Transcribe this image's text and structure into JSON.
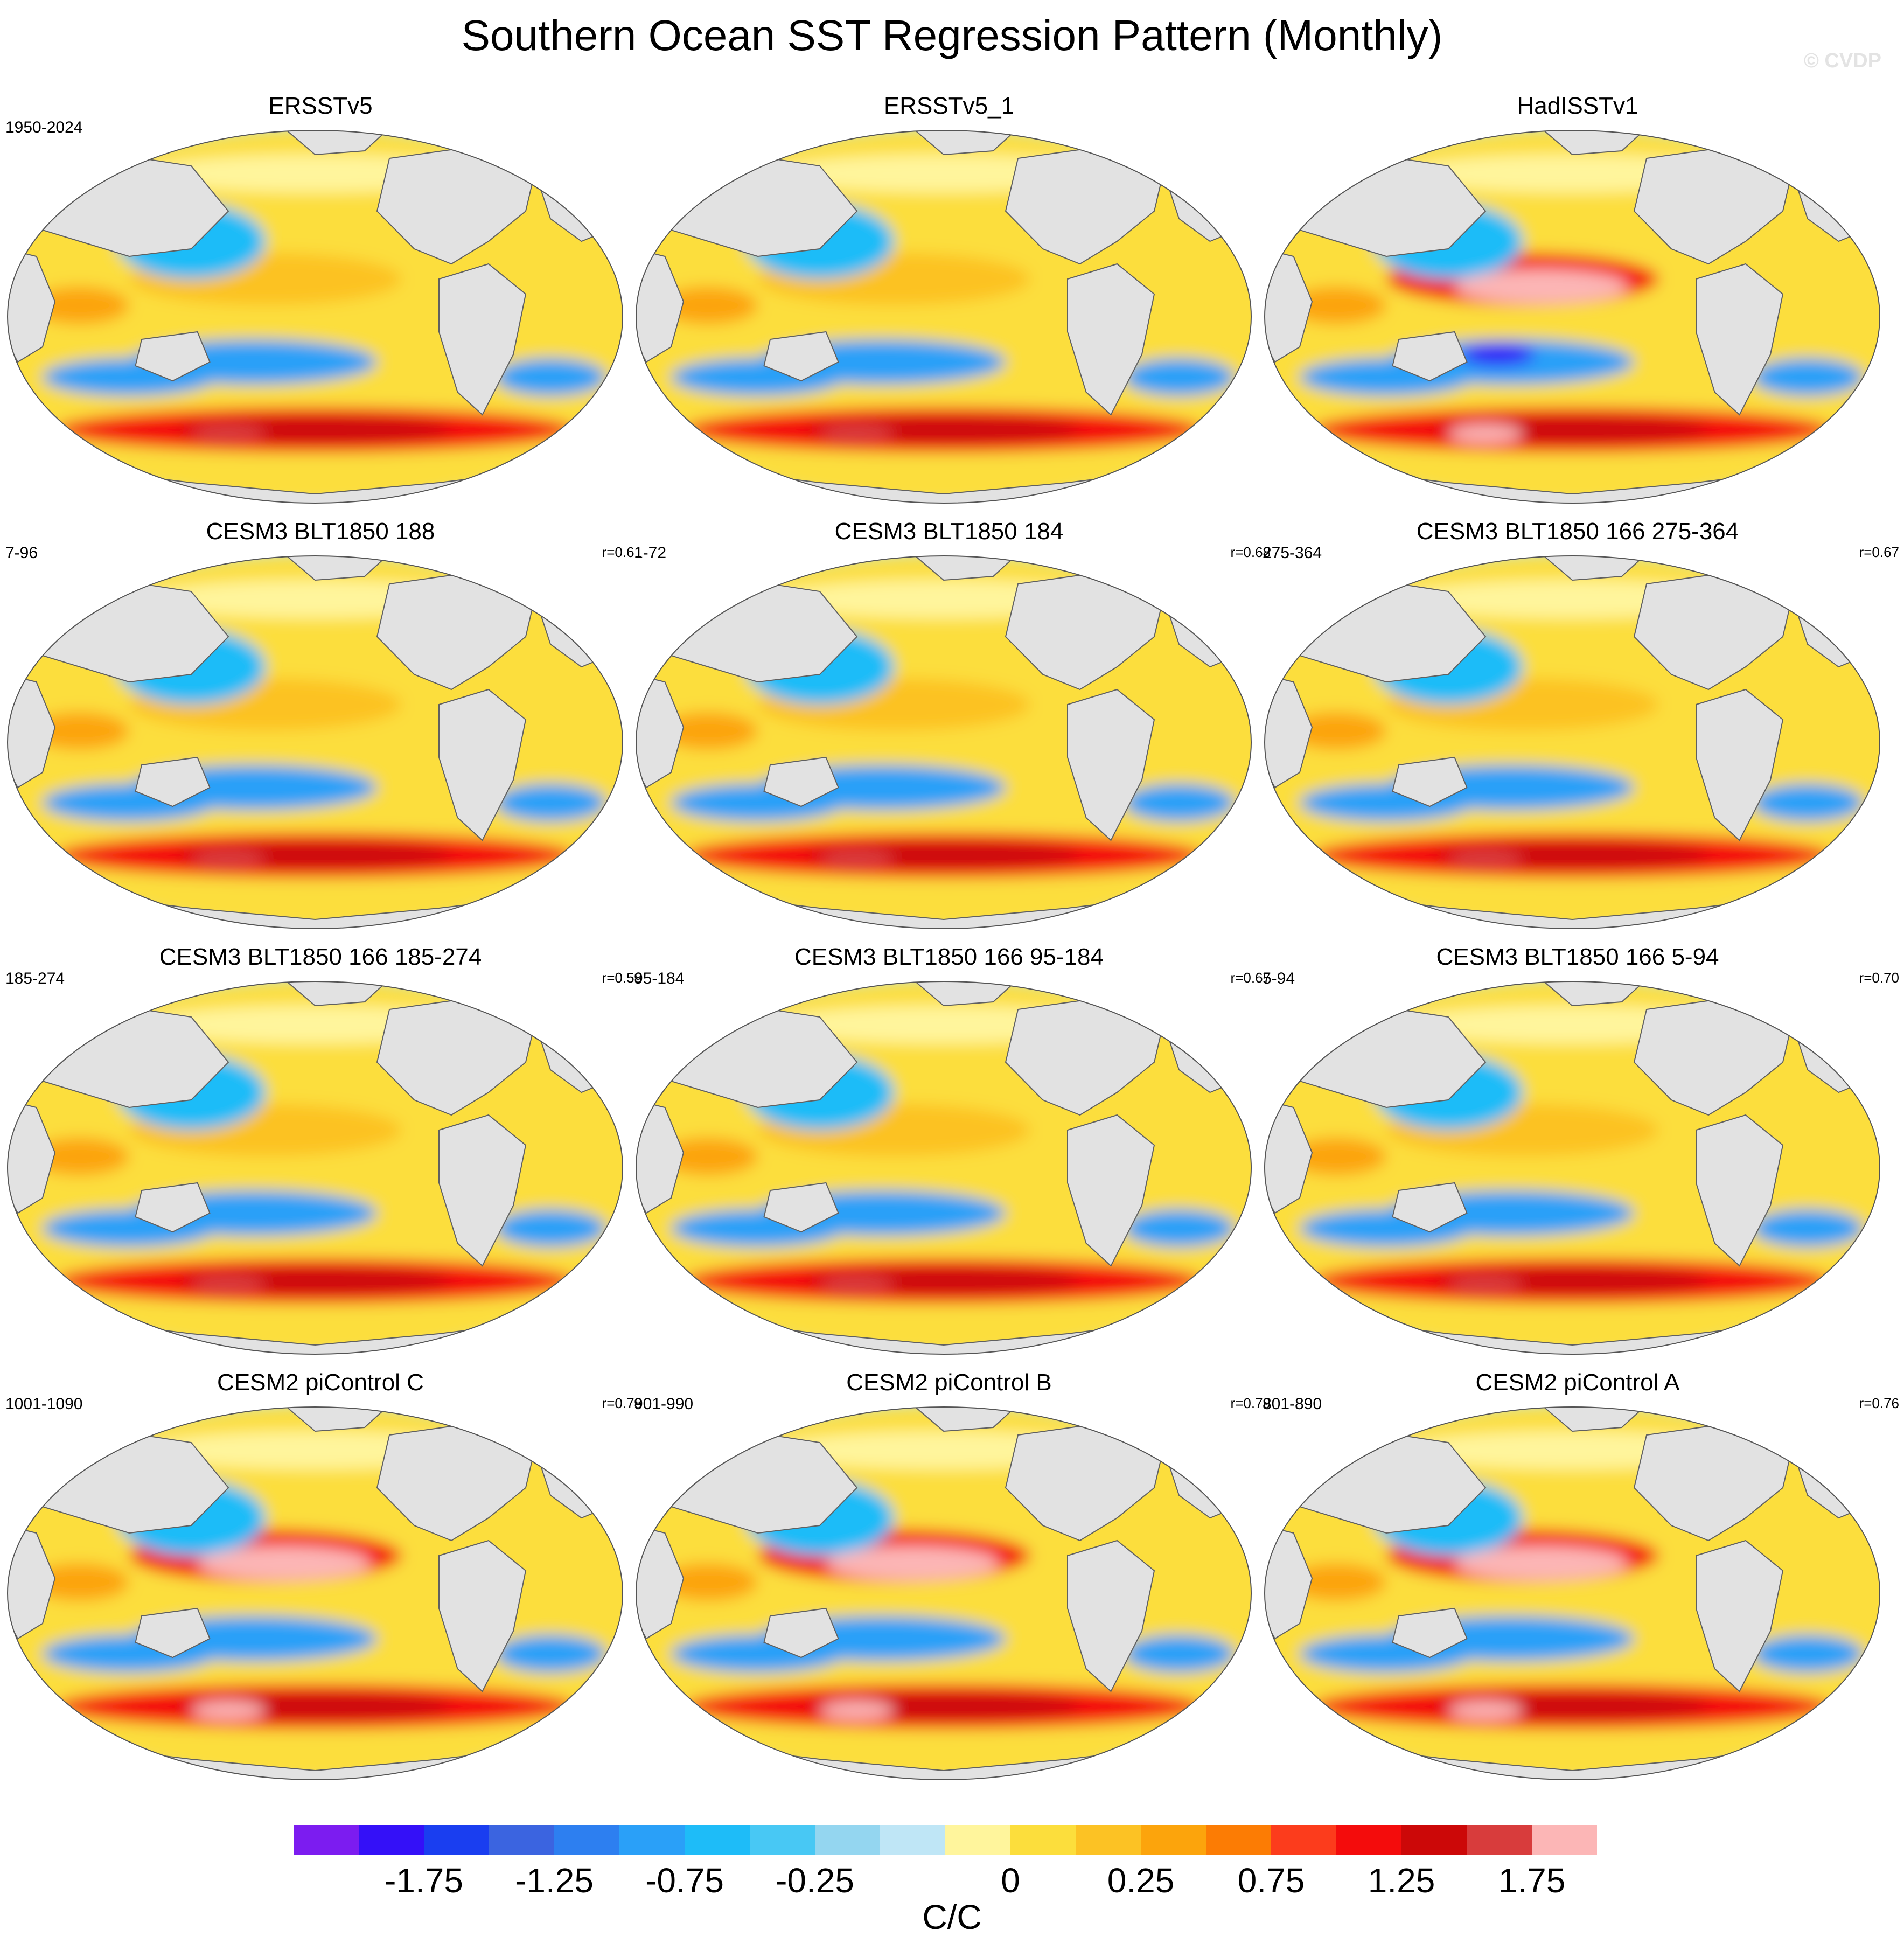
{
  "title": "Southern Ocean SST Regression Pattern (Monthly)",
  "watermark": "© CVDP",
  "colors": {
    "ocean": [
      "#7c1cf0",
      "#3410f8",
      "#1a3ef0",
      "#3b64e0",
      "#2d7ff0",
      "#2aa0f8",
      "#1ebcf8",
      "#48c8f4",
      "#94d6f0",
      "#bfe6f6",
      "#fff59c",
      "#fcde3c",
      "#fcc224",
      "#fca40c",
      "#fc7c04",
      "#fc3c1c",
      "#f40c0c",
      "#cc0808",
      "#d83c3c",
      "#fcb6b6"
    ],
    "land": "#e2e2e2",
    "coast": "#606060"
  },
  "panels": [
    {
      "id": "ersstv5",
      "title": "ERSSTv5",
      "period": "1950-2024",
      "corr": ""
    },
    {
      "id": "ersstv5-1",
      "title": "ERSSTv5_1",
      "period": "",
      "corr": ""
    },
    {
      "id": "hadisstv1",
      "title": "HadISSTv1",
      "period": "",
      "corr": ""
    },
    {
      "id": "cesm3-188",
      "title": "CESM3 BLT1850 188",
      "period": "7-96",
      "corr": "r=0.61"
    },
    {
      "id": "cesm3-184",
      "title": "CESM3 BLT1850 184",
      "period": "1-72",
      "corr": "r=0.68"
    },
    {
      "id": "cesm3-166-275",
      "title": "CESM3 BLT1850 166 275-364",
      "period": "275-364",
      "corr": "r=0.67"
    },
    {
      "id": "cesm3-166-185",
      "title": "CESM3 BLT1850 166 185-274",
      "period": "185-274",
      "corr": "r=0.58"
    },
    {
      "id": "cesm3-166-95",
      "title": "CESM3 BLT1850 166 95-184",
      "period": "95-184",
      "corr": "r=0.67"
    },
    {
      "id": "cesm3-166-5",
      "title": "CESM3 BLT1850 166 5-94",
      "period": "5-94",
      "corr": "r=0.70"
    },
    {
      "id": "cesm2-c",
      "title": "CESM2 piControl C",
      "period": "1001-1090",
      "corr": "r=0.78"
    },
    {
      "id": "cesm2-b",
      "title": "CESM2 piControl B",
      "period": "901-990",
      "corr": "r=0.79"
    },
    {
      "id": "cesm2-a",
      "title": "CESM2 piControl A",
      "period": "801-890",
      "corr": "r=0.76"
    }
  ],
  "colorbar": {
    "labels": [
      "-1.75",
      "-1.25",
      "-0.75",
      "-0.25",
      "0",
      "0.25",
      "0.75",
      "1.25",
      "1.75"
    ],
    "units": "C/C"
  }
}
